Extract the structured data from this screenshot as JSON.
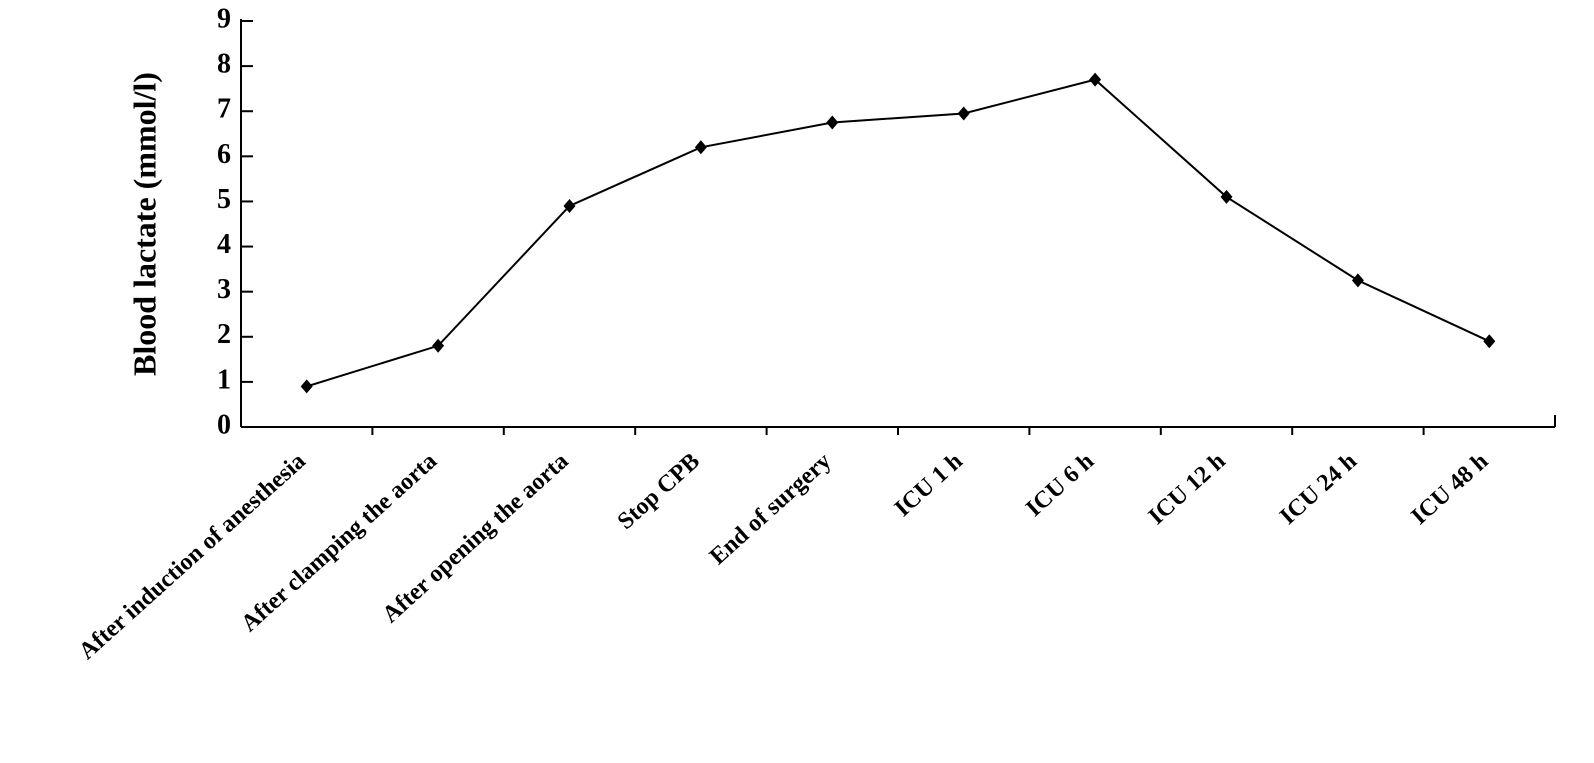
{
  "chart_data": {
    "type": "line",
    "y_label": "Blood lactate (mmol/l)",
    "categories": [
      "After induction of anesthesia",
      "After clamping the aorta",
      "After opening the aorta",
      "Stop CPB",
      "End of surgery",
      "ICU 1 h",
      "ICU 6 h",
      "ICU 12 h",
      "ICU 24 h",
      "ICU 48 h"
    ],
    "values": [
      0.9,
      1.8,
      4.9,
      6.2,
      6.75,
      6.95,
      7.7,
      5.1,
      3.25,
      1.9
    ],
    "color": "#000000",
    "ylim": [
      0,
      9
    ],
    "yticks": [
      0,
      1,
      2,
      3,
      4,
      5,
      6,
      7,
      8,
      9
    ],
    "grid": false
  }
}
